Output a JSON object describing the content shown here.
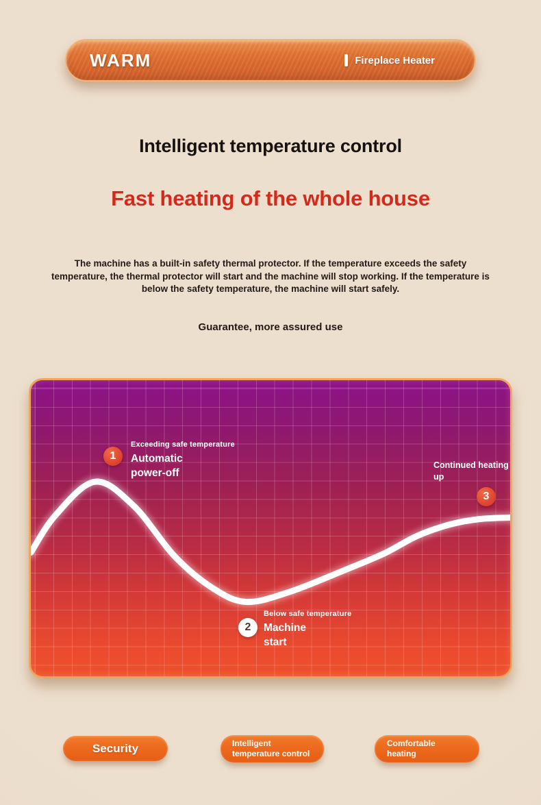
{
  "banner": {
    "brand": "WARM",
    "product": "Fireplace Heater"
  },
  "headline": {
    "title": "Intelligent temperature control",
    "subtitle": "Fast heating of the whole house",
    "subtitle_color": "#d42a1c"
  },
  "description": {
    "body": "The machine has a built-in safety thermal protector. If the temperature exceeds the safety temperature, the thermal protector will start and the machine will stop working. If the temperature is below the safety temperature, the machine will start safely.",
    "note": "Guarantee, more assured use"
  },
  "chart_data": {
    "type": "line",
    "title": "",
    "xlabel": "",
    "ylabel": "",
    "grid": "on",
    "curve_points": [
      [
        0,
        58.2
      ],
      [
        5.2,
        45.5
      ],
      [
        13.4,
        34.3
      ],
      [
        21.5,
        42.5
      ],
      [
        30,
        59.5
      ],
      [
        38,
        70.3
      ],
      [
        45,
        74.9
      ],
      [
        54,
        71.5
      ],
      [
        65.7,
        64.0
      ],
      [
        74,
        58.3
      ],
      [
        80.6,
        52.6
      ],
      [
        87.5,
        48.7
      ],
      [
        93.6,
        46.9
      ],
      [
        100,
        46.4
      ]
    ],
    "annotations": [
      {
        "id": "1",
        "title": "Exceeding safe temperature",
        "text": "Automatic\npower-off",
        "marker": "red"
      },
      {
        "id": "2",
        "title": "Below safe temperature",
        "text": "Machine\nstart",
        "marker": "white"
      },
      {
        "id": "3",
        "title": "Continued heating\nup",
        "text": "",
        "marker": "red"
      }
    ],
    "colors": {
      "curve": "#ffffff",
      "marker_red": "#df422d",
      "marker_white": "#ffffff",
      "panel_top": "#8c1289",
      "panel_bottom": "#ee512d"
    }
  },
  "tags": [
    {
      "label": "Security"
    },
    {
      "label": "Intelligent\ntemperature control"
    },
    {
      "label": "Comfortable\nheating"
    }
  ],
  "theme": {
    "accent_orange": "#ec671d",
    "background": "#ebdccb"
  }
}
